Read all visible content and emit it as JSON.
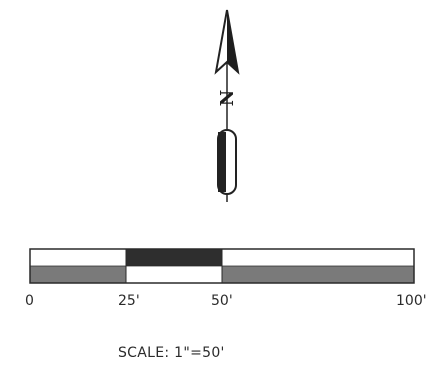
{
  "north_arrow": {
    "letter": "N",
    "icon": "north-arrow-icon"
  },
  "scale_bar": {
    "labels": [
      "0",
      "25'",
      "50'",
      "100'"
    ],
    "caption": "SCALE: 1\"=50'",
    "colors": {
      "dark": "#2e2e2e",
      "mid": "#7a7a7a",
      "light": "#ffffff",
      "outline": "#2a2a2a"
    }
  }
}
